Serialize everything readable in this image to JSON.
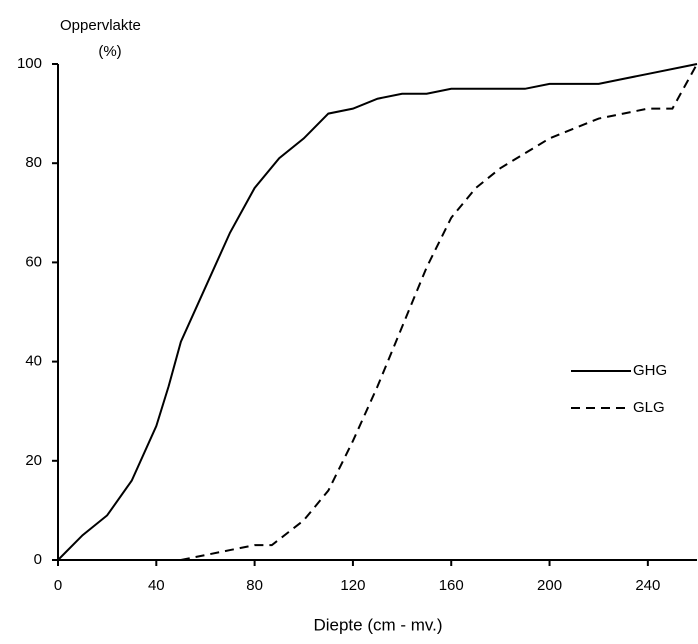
{
  "chart_data": {
    "type": "line",
    "ylabel_lines": [
      "Oppervlakte",
      "(%)"
    ],
    "xlabel": "Diepte (cm - mv.)",
    "xlim": [
      0,
      260
    ],
    "xticks": [
      0,
      40,
      80,
      120,
      160,
      200,
      240
    ],
    "ylim": [
      0,
      100
    ],
    "yticks": [
      0,
      20,
      40,
      60,
      80,
      100
    ],
    "legend": "right",
    "series": [
      {
        "name": "GHG",
        "color": "#000000",
        "dash": "solid",
        "x": [
          0,
          10,
          20,
          30,
          40,
          45,
          50,
          60,
          70,
          80,
          90,
          100,
          110,
          120,
          130,
          140,
          150,
          160,
          170,
          180,
          190,
          200,
          220,
          230,
          240,
          260
        ],
        "values": [
          0,
          5,
          9,
          16,
          27,
          35,
          44,
          55,
          66,
          75,
          81,
          85,
          90,
          91,
          93,
          94,
          94,
          95,
          95,
          95,
          95,
          96,
          96,
          97,
          98,
          100
        ]
      },
      {
        "name": "GLG",
        "color": "#000000",
        "dash": "dashed",
        "x": [
          50,
          60,
          70,
          80,
          87,
          100,
          110,
          120,
          130,
          140,
          150,
          160,
          170,
          180,
          190,
          200,
          220,
          230,
          240,
          250,
          260
        ],
        "values": [
          0,
          1,
          2,
          3,
          3,
          8,
          14,
          24,
          35,
          47,
          59,
          69,
          75,
          79,
          82,
          85,
          89,
          90,
          91,
          91,
          100
        ]
      }
    ]
  }
}
